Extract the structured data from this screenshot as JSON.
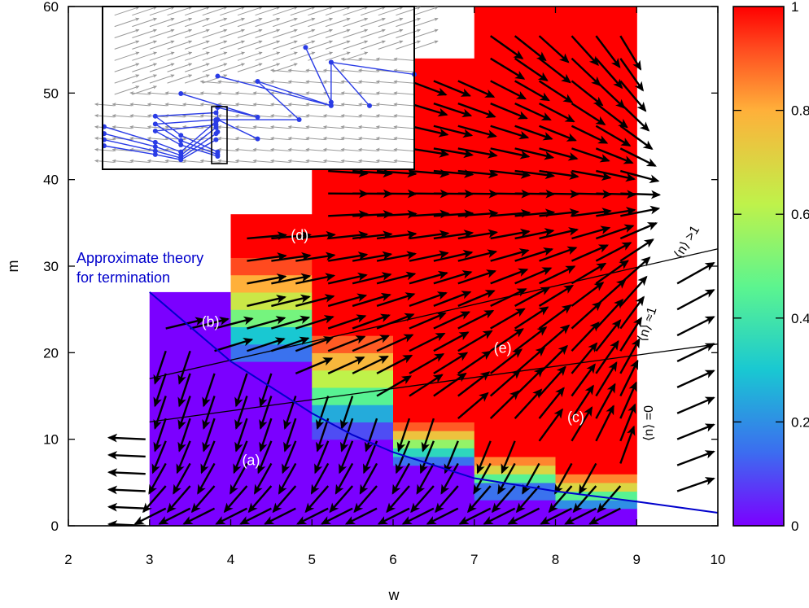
{
  "chart_data": {
    "type": "heatmap",
    "xlabel": "w",
    "ylabel": "m",
    "xlim": [
      2,
      10
    ],
    "ylim": [
      0,
      60
    ],
    "x_ticks": [
      "2",
      "3",
      "4",
      "5",
      "6",
      "7",
      "8",
      "9",
      "10"
    ],
    "y_ticks": [
      "0",
      "10",
      "20",
      "30",
      "40",
      "50",
      "60"
    ],
    "colorbar": {
      "range": [
        0,
        1
      ],
      "ticks": [
        "0",
        "0.2",
        "0.4",
        "0.6",
        "0.8",
        "1"
      ],
      "colors": [
        "#7b00ff",
        "#3c6cf0",
        "#19c8d2",
        "#5cf58f",
        "#bff24a",
        "#ffb03a",
        "#ff4a1f",
        "#ff0000"
      ]
    },
    "columns": [
      {
        "w_start": 3,
        "w_end": 4,
        "m_max": 27,
        "levels": [
          {
            "m_start": 0,
            "m_end": 27,
            "value": 0
          }
        ]
      },
      {
        "w_start": 4,
        "w_end": 5,
        "m_max": 36,
        "levels": [
          {
            "m_start": 0,
            "m_end": 19,
            "value": 0
          },
          {
            "m_start": 19,
            "m_end": 21,
            "value": 0.15
          },
          {
            "m_start": 21,
            "m_end": 23,
            "value": 0.3
          },
          {
            "m_start": 23,
            "m_end": 25,
            "value": 0.5
          },
          {
            "m_start": 25,
            "m_end": 27,
            "value": 0.65
          },
          {
            "m_start": 27,
            "m_end": 29,
            "value": 0.8
          },
          {
            "m_start": 29,
            "m_end": 31,
            "value": 0.92
          },
          {
            "m_start": 31,
            "m_end": 36,
            "value": 1
          }
        ]
      },
      {
        "w_start": 5,
        "w_end": 6,
        "m_max": 45,
        "levels": [
          {
            "m_start": 0,
            "m_end": 10,
            "value": 0
          },
          {
            "m_start": 10,
            "m_end": 12,
            "value": 0.1
          },
          {
            "m_start": 12,
            "m_end": 14,
            "value": 0.25
          },
          {
            "m_start": 14,
            "m_end": 16,
            "value": 0.45
          },
          {
            "m_start": 16,
            "m_end": 18,
            "value": 0.62
          },
          {
            "m_start": 18,
            "m_end": 20,
            "value": 0.78
          },
          {
            "m_start": 20,
            "m_end": 22,
            "value": 0.9
          },
          {
            "m_start": 22,
            "m_end": 45,
            "value": 1
          }
        ]
      },
      {
        "w_start": 6,
        "w_end": 7,
        "m_max": 54,
        "levels": [
          {
            "m_start": 0,
            "m_end": 7,
            "value": 0
          },
          {
            "m_start": 7,
            "m_end": 8,
            "value": 0.15
          },
          {
            "m_start": 8,
            "m_end": 9,
            "value": 0.35
          },
          {
            "m_start": 9,
            "m_end": 10,
            "value": 0.55
          },
          {
            "m_start": 10,
            "m_end": 11,
            "value": 0.75
          },
          {
            "m_start": 11,
            "m_end": 12,
            "value": 0.9
          },
          {
            "m_start": 12,
            "m_end": 54,
            "value": 1
          }
        ]
      },
      {
        "w_start": 7,
        "w_end": 8,
        "m_max": 60,
        "levels": [
          {
            "m_start": 0,
            "m_end": 3,
            "value": 0
          },
          {
            "m_start": 3,
            "m_end": 5,
            "value": 0.15
          },
          {
            "m_start": 5,
            "m_end": 6,
            "value": 0.45
          },
          {
            "m_start": 6,
            "m_end": 7,
            "value": 0.7
          },
          {
            "m_start": 7,
            "m_end": 8,
            "value": 0.85
          },
          {
            "m_start": 8,
            "m_end": 60,
            "value": 1
          }
        ]
      },
      {
        "w_start": 8,
        "w_end": 9,
        "m_max": 60,
        "levels": [
          {
            "m_start": 0,
            "m_end": 2,
            "value": 0
          },
          {
            "m_start": 2,
            "m_end": 3,
            "value": 0.2
          },
          {
            "m_start": 3,
            "m_end": 4,
            "value": 0.45
          },
          {
            "m_start": 4,
            "m_end": 5,
            "value": 0.7
          },
          {
            "m_start": 5,
            "m_end": 6,
            "value": 0.85
          },
          {
            "m_start": 6,
            "m_end": 60,
            "value": 1
          }
        ]
      }
    ],
    "theory_curve": {
      "label": "Approximate theory\nfor termination",
      "color": "#0000cc",
      "points": [
        [
          3,
          27
        ],
        [
          3.5,
          23
        ],
        [
          4,
          19
        ],
        [
          4.5,
          16
        ],
        [
          5,
          13
        ],
        [
          5.5,
          10.5
        ],
        [
          6,
          8.5
        ],
        [
          7,
          5.5
        ],
        [
          8,
          4
        ],
        [
          9,
          2.8
        ],
        [
          10,
          1.5
        ]
      ]
    },
    "regime_lines": [
      {
        "label": "⟨n⟩ >1",
        "points": [
          [
            3,
            17
          ],
          [
            10,
            32
          ]
        ]
      },
      {
        "label": "⟨n⟩ ≈1",
        "points": [
          [
            3,
            12
          ],
          [
            10,
            21
          ]
        ]
      }
    ],
    "regime_labels": [
      "⟨n⟩ =0"
    ],
    "region_labels": [
      {
        "text": "(a)",
        "w": 4.25,
        "m": 7
      },
      {
        "text": "(b)",
        "w": 3.75,
        "m": 23
      },
      {
        "text": "(c)",
        "w": 8.25,
        "m": 12
      },
      {
        "text": "(d)",
        "w": 4.85,
        "m": 33
      },
      {
        "text": "(e)",
        "w": 7.35,
        "m": 20
      }
    ],
    "attractor": {
      "w": 10,
      "m": 38
    },
    "inset": {
      "ranges": {
        "w": [
          2.4,
          6.3
        ],
        "m": [
          41.3,
          60
        ]
      },
      "path_color": "#2a3ce6",
      "paths": [
        [
          [
            2.42,
            46.2
          ],
          [
            3.06,
            44.4
          ],
          [
            3.38,
            43.3
          ],
          [
            3.82,
            46.8
          ]
        ],
        [
          [
            2.42,
            45.4
          ],
          [
            3.06,
            43.9
          ],
          [
            3.38,
            42.9
          ],
          [
            3.82,
            46.1
          ]
        ],
        [
          [
            2.42,
            44.7
          ],
          [
            3.06,
            43.4
          ],
          [
            3.38,
            42.6
          ],
          [
            3.82,
            45.4
          ]
        ],
        [
          [
            2.42,
            44.0
          ],
          [
            3.06,
            43.0
          ],
          [
            3.38,
            42.4
          ],
          [
            3.82,
            44.7
          ]
        ],
        [
          [
            3.82,
            47.8
          ],
          [
            3.06,
            47.4
          ],
          [
            3.38,
            45.2
          ],
          [
            3.84,
            43.3
          ]
        ],
        [
          [
            3.82,
            47.0
          ],
          [
            3.06,
            46.5
          ],
          [
            3.38,
            44.6
          ],
          [
            3.84,
            43.0
          ]
        ],
        [
          [
            3.82,
            46.4
          ],
          [
            3.06,
            45.7
          ],
          [
            3.38,
            44.1
          ],
          [
            3.84,
            42.8
          ]
        ],
        [
          [
            3.38,
            50.0
          ],
          [
            4.34,
            47.3
          ],
          [
            3.84,
            48.4
          ],
          [
            3.84,
            45.6
          ]
        ],
        [
          [
            3.84,
            52.0
          ],
          [
            5.26,
            48.6
          ],
          [
            4.34,
            51.4
          ],
          [
            4.86,
            47.0
          ],
          [
            3.84,
            47.0
          ],
          [
            4.34,
            44.8
          ]
        ],
        [
          [
            4.94,
            55.3
          ],
          [
            5.26,
            49.0
          ],
          [
            5.26,
            53.6
          ],
          [
            5.74,
            48.6
          ],
          [
            5.26,
            53.6
          ],
          [
            6.3,
            52.2
          ]
        ]
      ]
    }
  }
}
